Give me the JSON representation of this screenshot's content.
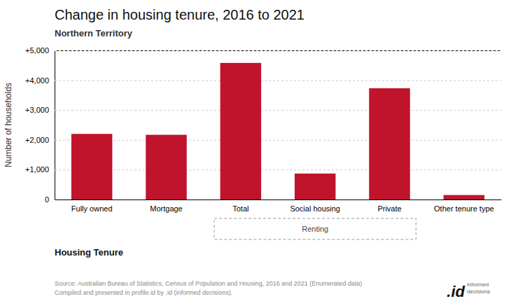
{
  "chart_data": {
    "type": "bar",
    "title": "Change in housing tenure, 2016 to 2021",
    "subtitle": "Northern Territory",
    "categories": [
      "Fully owned",
      "Mortgage",
      "Total",
      "Social housing",
      "Private",
      "Other tenure type"
    ],
    "values": [
      2200,
      2170,
      4580,
      870,
      3730,
      150
    ],
    "color": "#C0142C",
    "ylabel": "Number of households",
    "xlabel": "Housing Tenure",
    "ylim": [
      0,
      5000
    ],
    "yticks": [
      0,
      {
        "value": 1000,
        "label": "+1,000"
      },
      {
        "value": 2000,
        "label": "+2,000"
      },
      {
        "value": 3000,
        "label": "+3,000"
      },
      {
        "value": 4000,
        "label": "+4,000"
      },
      {
        "value": 5000,
        "label": "+5,000"
      }
    ],
    "grid": true,
    "annotations": [
      {
        "text": "Renting",
        "from": "Total",
        "to": "Private"
      }
    ],
    "source": "Source: Australian Bureau of Statistics, Census of Population and Housing, 2016 and 2021 (Enumerated data)\nCompiled and presented in profile.id by .id (informed decisions).",
    "logo": ".id",
    "logo_text": "informed\ndecisions"
  }
}
